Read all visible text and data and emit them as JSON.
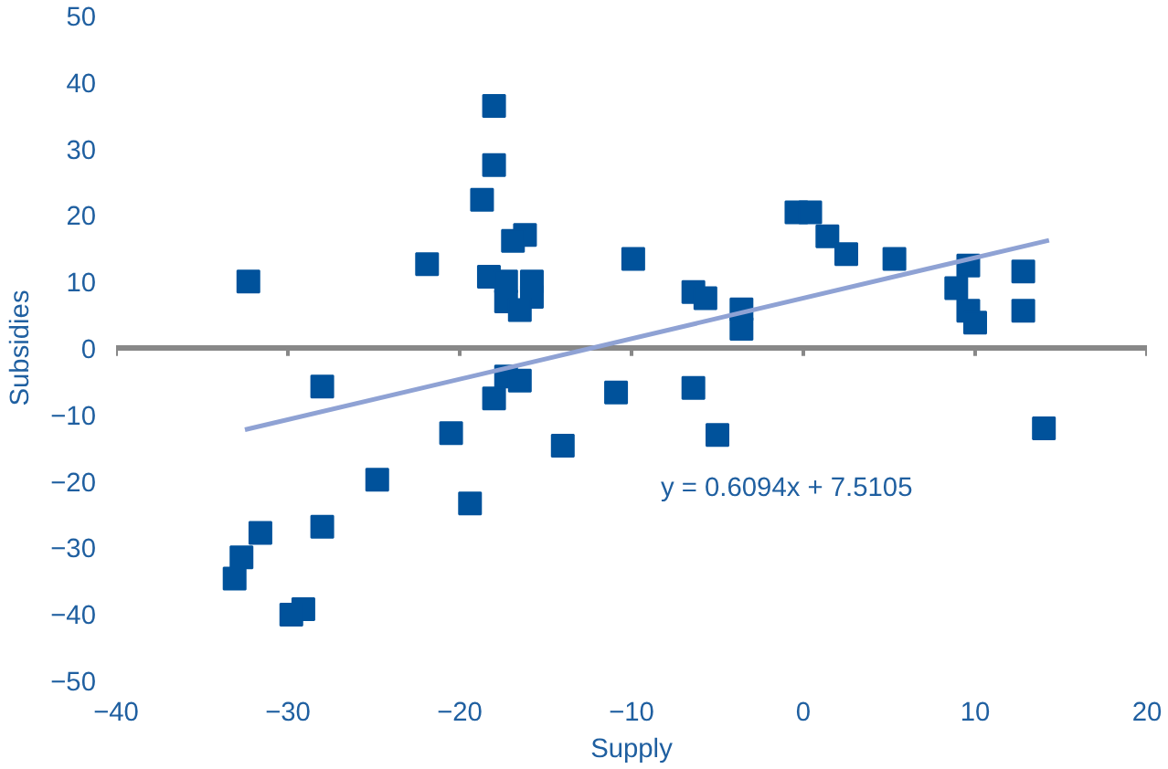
{
  "chart_data": {
    "type": "scatter",
    "xlabel": "Supply",
    "ylabel": "Subsidies",
    "xlim": [
      -40,
      20
    ],
    "ylim": [
      -50,
      50
    ],
    "xticks": [
      -40,
      -30,
      -20,
      -10,
      0,
      10,
      20
    ],
    "yticks": [
      -50,
      -40,
      -30,
      -20,
      -10,
      0,
      10,
      20,
      30,
      40,
      50
    ],
    "marker": "square",
    "series": [
      {
        "color": "#00529b",
        "x": [
          -18.0,
          -18.0,
          -18.7,
          -16.2,
          -16.9,
          -21.9,
          -32.3,
          -9.9,
          -18.3,
          -17.3,
          -15.8,
          -15.8,
          -17.3,
          -16.5,
          -28.0,
          -18.0,
          -17.3,
          -16.5,
          -10.9,
          -20.5,
          -14.0,
          -24.8,
          -19.4,
          -28.0,
          -31.6,
          -32.7,
          -33.1,
          -29.1,
          -29.8,
          -6.4,
          -5.7,
          -3.6,
          -3.6,
          -0.4,
          0.4,
          1.4,
          2.5,
          5.3,
          9.6,
          8.9,
          9.6,
          10.0,
          12.8,
          12.8,
          -6.4,
          -5.0,
          14.0
        ],
        "values": [
          36.4,
          27.5,
          22.3,
          17.0,
          16.1,
          12.6,
          10.0,
          13.4,
          10.7,
          10.0,
          10.0,
          7.7,
          7.0,
          5.7,
          -5.8,
          -7.6,
          -4.3,
          -4.9,
          -6.7,
          -12.8,
          -14.7,
          -19.8,
          -23.4,
          -26.9,
          -27.8,
          -31.5,
          -34.7,
          -39.3,
          -40.1,
          8.4,
          7.5,
          5.8,
          2.9,
          20.4,
          20.4,
          16.8,
          14.1,
          13.4,
          12.4,
          9.0,
          5.6,
          3.8,
          11.5,
          5.6,
          -6.0,
          -13.1,
          -12.1
        ]
      },
      {
        "type": "line",
        "color": "#8fa2d4",
        "line_style": "solid",
        "marker": "none",
        "x": [
          -32.5,
          14.3
        ],
        "values": [
          -12.3,
          16.2
        ]
      }
    ],
    "annotations": [
      "y = 0.6094x + 7.5105"
    ]
  }
}
